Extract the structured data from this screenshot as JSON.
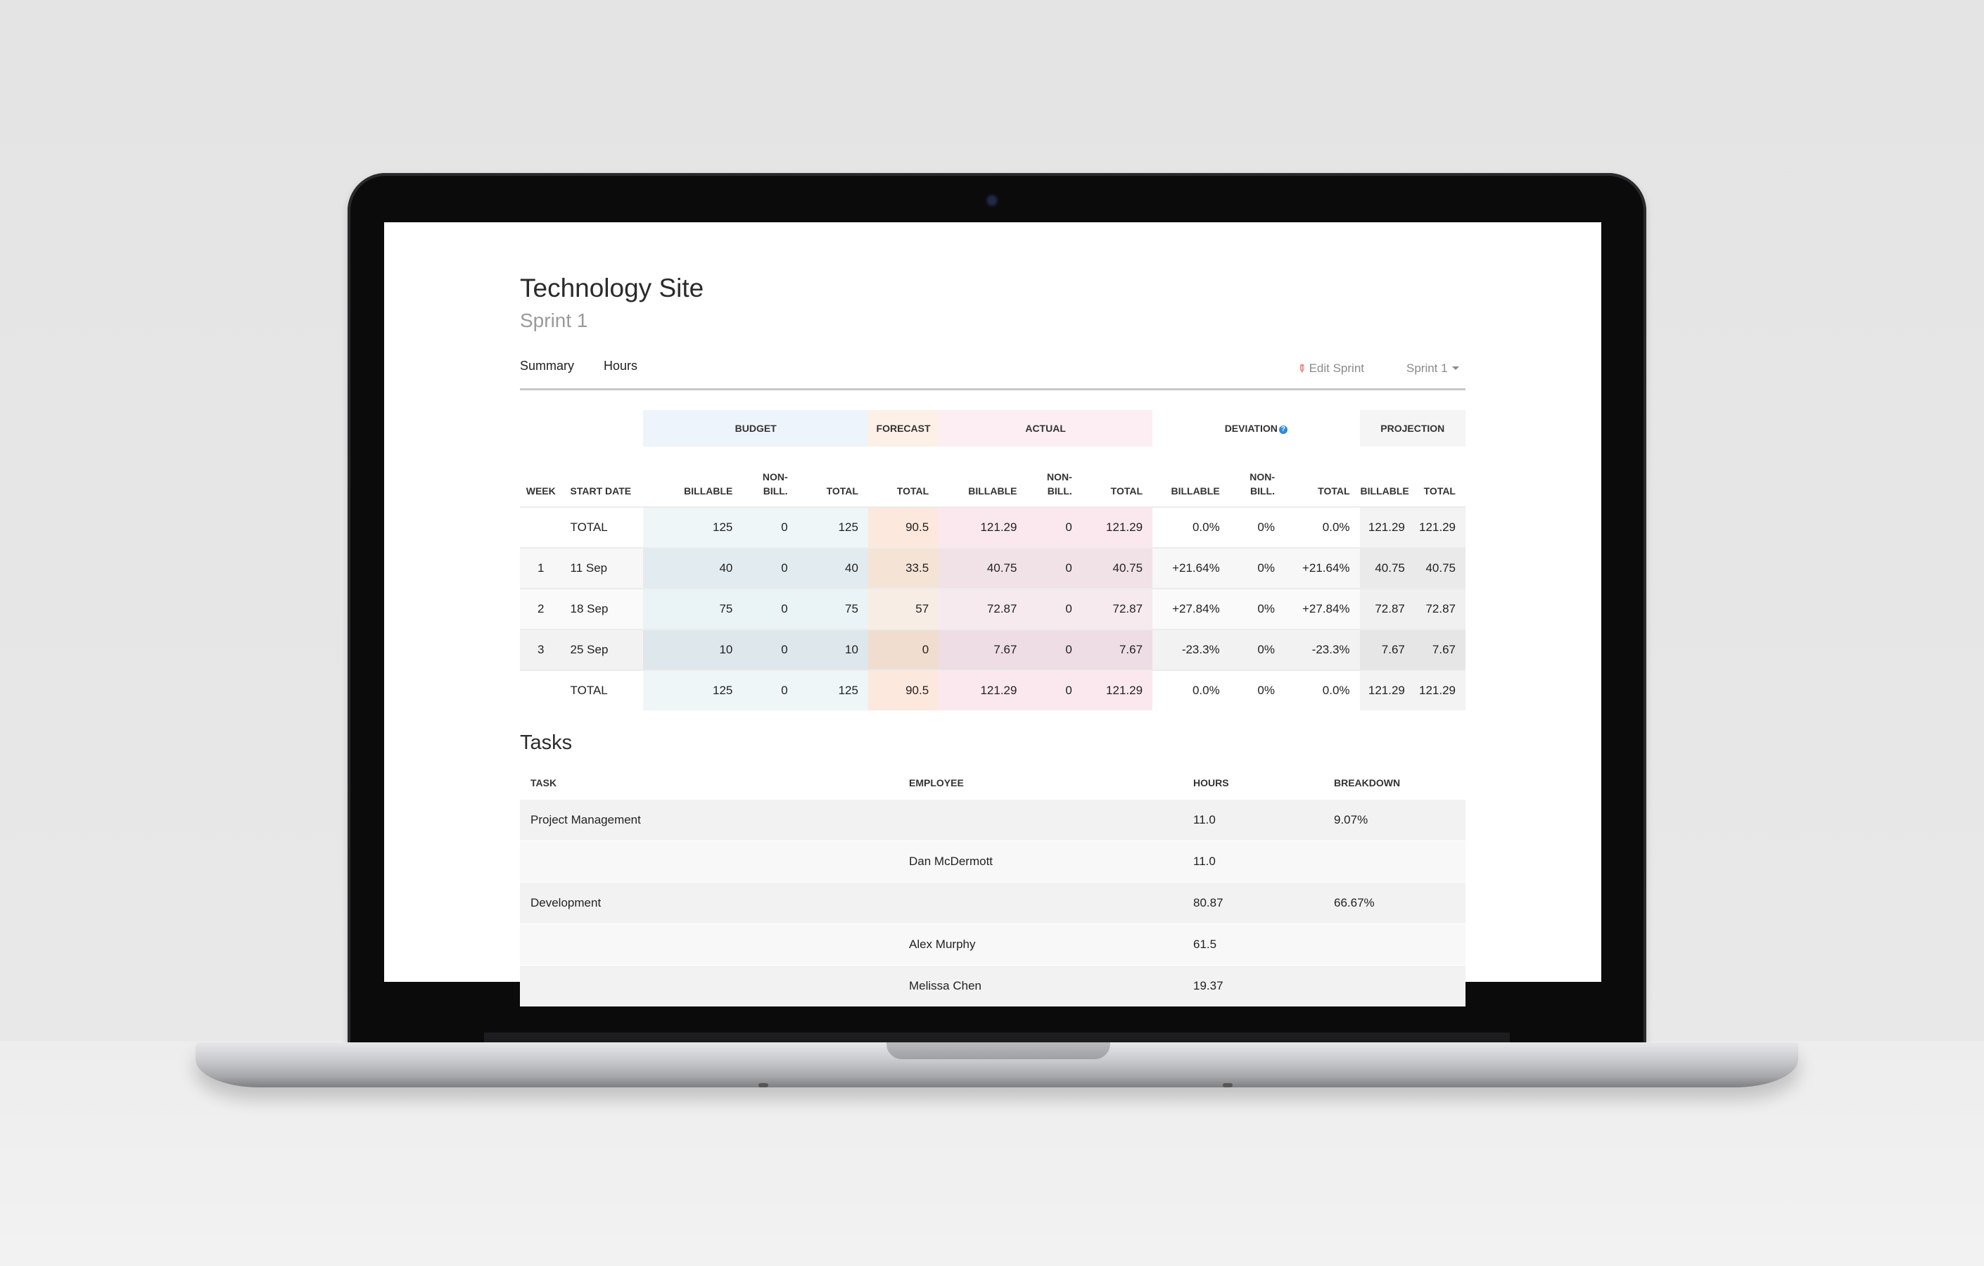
{
  "page": {
    "title": "Technology Site",
    "subtitle": "Sprint 1"
  },
  "nav": {
    "tabs": [
      "Summary",
      "Hours"
    ],
    "edit_label": "Edit Sprint",
    "sprint_select": "Sprint 1"
  },
  "summary": {
    "groups": {
      "budget": "BUDGET",
      "forecast": "FORECAST",
      "actual": "ACTUAL",
      "deviation": "DEVIATION",
      "projection": "PROJECTION"
    },
    "columns": {
      "week": "WEEK",
      "start_date": "START DATE",
      "budget_billable": "BILLABLE",
      "budget_nonbill": "NON-\nBILL.",
      "budget_total": "TOTAL",
      "forecast_total": "TOTAL",
      "actual_billable": "BILLABLE",
      "actual_nonbill": "NON-\nBILL.",
      "actual_total": "TOTAL",
      "deviation_billable": "BILLABLE",
      "deviation_nonbill": "NON-\nBILL.",
      "deviation_total": "TOTAL",
      "projection_billable": "BILLABLE",
      "projection_total": "TOTAL"
    },
    "rows": [
      {
        "week": "",
        "start": "TOTAL",
        "b_bill": "125",
        "b_non": "0",
        "b_tot": "125",
        "f_tot": "90.5",
        "a_bill": "121.29",
        "a_non": "0",
        "a_tot": "121.29",
        "d_bill": "0.0%",
        "d_non": "0%",
        "d_tot": "0.0%",
        "p_bill": "121.29",
        "p_tot": "121.29"
      },
      {
        "week": "1",
        "start": "11 Sep",
        "b_bill": "40",
        "b_non": "0",
        "b_tot": "40",
        "f_tot": "33.5",
        "a_bill": "40.75",
        "a_non": "0",
        "a_tot": "40.75",
        "d_bill": "+21.64%",
        "d_non": "0%",
        "d_tot": "+21.64%",
        "p_bill": "40.75",
        "p_tot": "40.75"
      },
      {
        "week": "2",
        "start": "18 Sep",
        "b_bill": "75",
        "b_non": "0",
        "b_tot": "75",
        "f_tot": "57",
        "a_bill": "72.87",
        "a_non": "0",
        "a_tot": "72.87",
        "d_bill": "+27.84%",
        "d_non": "0%",
        "d_tot": "+27.84%",
        "p_bill": "72.87",
        "p_tot": "72.87"
      },
      {
        "week": "3",
        "start": "25 Sep",
        "b_bill": "10",
        "b_non": "0",
        "b_tot": "10",
        "f_tot": "0",
        "a_bill": "7.67",
        "a_non": "0",
        "a_tot": "7.67",
        "d_bill": "-23.3%",
        "d_non": "0%",
        "d_tot": "-23.3%",
        "p_bill": "7.67",
        "p_tot": "7.67"
      },
      {
        "week": "",
        "start": "TOTAL",
        "b_bill": "125",
        "b_non": "0",
        "b_tot": "125",
        "f_tot": "90.5",
        "a_bill": "121.29",
        "a_non": "0",
        "a_tot": "121.29",
        "d_bill": "0.0%",
        "d_non": "0%",
        "d_tot": "0.0%",
        "p_bill": "121.29",
        "p_tot": "121.29"
      }
    ]
  },
  "tasks": {
    "title": "Tasks",
    "columns": {
      "task": "TASK",
      "employee": "EMPLOYEE",
      "hours": "HOURS",
      "breakdown": "BREAKDOWN"
    },
    "rows": [
      {
        "task": "Project Management",
        "employee": "",
        "hours": "11.0",
        "breakdown": "9.07%"
      },
      {
        "task": "",
        "employee": "Dan McDermott",
        "hours": "11.0",
        "breakdown": ""
      },
      {
        "task": "Development",
        "employee": "",
        "hours": "80.87",
        "breakdown": "66.67%"
      },
      {
        "task": "",
        "employee": "Alex Murphy",
        "hours": "61.5",
        "breakdown": ""
      },
      {
        "task": "",
        "employee": "Melissa Chen",
        "hours": "19.37",
        "breakdown": ""
      }
    ]
  },
  "icons": {
    "edit": "pencil-icon",
    "sprint_dropdown": "caret-down-icon",
    "deviation_info": "info-icon"
  },
  "colors": {
    "budget_bg": "#eef4fb",
    "forecast_bg": "#fdf0e6",
    "actual_bg": "#fdeef3",
    "info_icon": "#2f8bd8",
    "edit_icon": "#e0453a"
  }
}
